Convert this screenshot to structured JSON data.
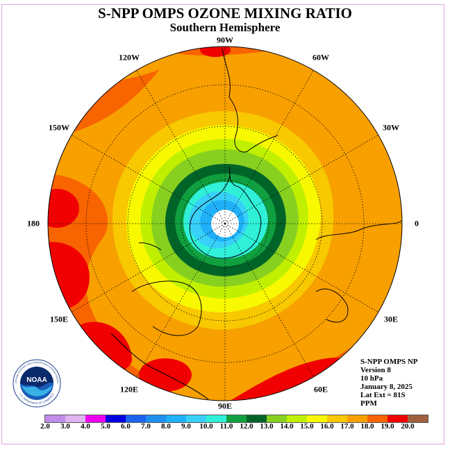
{
  "title": "S-NPP OMPS OZONE MIXING RATIO",
  "subtitle": "Southern Hemisphere",
  "longitude_labels": [
    "90W",
    "60W",
    "30W",
    "0",
    "30E",
    "60E",
    "90E",
    "120E",
    "150E",
    "180",
    "150W",
    "120W"
  ],
  "info": {
    "line1": "S-NPP OMPS NP",
    "line2": "Version 8",
    "line3": "10 hPa",
    "line4": "January 8, 2025",
    "line5": "Lat Ext = 81S",
    "line6": "PPM"
  },
  "color_scale": {
    "labels": [
      "2.0",
      "3.0",
      "4.0",
      "5.0",
      "6.0",
      "7.0",
      "8.0",
      "9.0",
      "10.0",
      "11.0",
      "12.0",
      "13.0",
      "14.0",
      "15.0",
      "16.0",
      "17.0",
      "18.0",
      "19.0",
      "20.0"
    ],
    "colors": [
      "#c08ce8",
      "#e0b4f0",
      "#f000f0",
      "#0000e0",
      "#1c64f0",
      "#1e90f0",
      "#20b0f8",
      "#38d0f8",
      "#30f0d8",
      "#10a040",
      "#006428",
      "#88d020",
      "#c0f000",
      "#f8f800",
      "#f8c800",
      "#f8a000",
      "#f86400",
      "#f00000",
      "#a06040"
    ]
  },
  "map_colors": {
    "center": "#ffffff",
    "outer": "#f8a000"
  },
  "logo": {
    "text": "NOAA",
    "ring_text": "NATIONAL OCEANIC AND ATMOSPHERIC ADMINISTRATION",
    "ring_text_bottom": "U.S. DEPARTMENT OF COMMERCE"
  }
}
